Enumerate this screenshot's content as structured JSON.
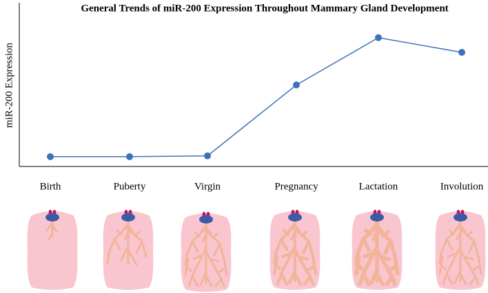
{
  "chart_data": {
    "type": "line",
    "title": "General Trends of miR-200 Expression Throughout Mammary Gland Development",
    "y_label": "miR-200 Expression",
    "categories": [
      "Birth",
      "Puberty",
      "Virgin",
      "Pregnancy",
      "Lactation",
      "Involution"
    ],
    "series": [
      {
        "name": "miR-200",
        "color": "#3d72b8",
        "values": [
          0.6,
          0.6,
          0.65,
          5.0,
          7.9,
          7.0
        ]
      }
    ],
    "ylim": [
      0,
      10
    ]
  }
}
